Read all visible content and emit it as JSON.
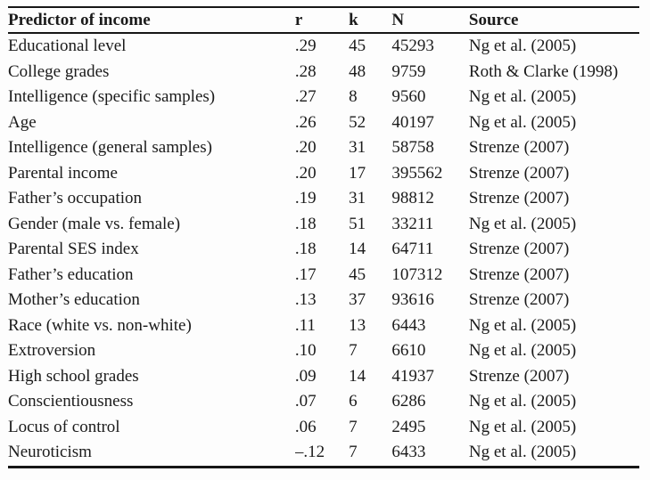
{
  "colors": {
    "background": "#fdfdfd",
    "text": "#1b1b1b",
    "rule": "#161616"
  },
  "chart_data": {
    "type": "table",
    "columns": [
      "Predictor of income",
      "r",
      "k",
      "N",
      "Source"
    ],
    "rows": [
      [
        "Educational level",
        ".29",
        "45",
        "45293",
        "Ng et al. (2005)"
      ],
      [
        "College grades",
        ".28",
        "48",
        "9759",
        "Roth & Clarke (1998)"
      ],
      [
        "Intelligence (specific samples)",
        ".27",
        "8",
        "9560",
        "Ng et al. (2005)"
      ],
      [
        "Age",
        ".26",
        "52",
        "40197",
        "Ng et al. (2005)"
      ],
      [
        "Intelligence (general samples)",
        ".20",
        "31",
        "58758",
        "Strenze (2007)"
      ],
      [
        "Parental income",
        ".20",
        "17",
        "395562",
        "Strenze (2007)"
      ],
      [
        "Father’s occupation",
        ".19",
        "31",
        "98812",
        "Strenze (2007)"
      ],
      [
        "Gender (male vs. female)",
        ".18",
        "51",
        "33211",
        "Ng et al. (2005)"
      ],
      [
        "Parental SES index",
        ".18",
        "14",
        "64711",
        "Strenze (2007)"
      ],
      [
        "Father’s education",
        ".17",
        "45",
        "107312",
        "Strenze (2007)"
      ],
      [
        "Mother’s education",
        ".13",
        "37",
        "93616",
        "Strenze (2007)"
      ],
      [
        "Race (white vs. non-white)",
        ".11",
        "13",
        "6443",
        "Ng et al. (2005)"
      ],
      [
        "Extroversion",
        ".10",
        "7",
        "6610",
        "Ng et al. (2005)"
      ],
      [
        "High school grades",
        ".09",
        "14",
        "41937",
        "Strenze (2007)"
      ],
      [
        "Conscientiousness",
        ".07",
        "6",
        "6286",
        "Ng et al. (2005)"
      ],
      [
        "Locus of control",
        ".06",
        "7",
        "2495",
        "Ng et al. (2005)"
      ],
      [
        "Neuroticism",
        "–.12",
        "7",
        "6433",
        "Ng et al. (2005)"
      ]
    ]
  }
}
